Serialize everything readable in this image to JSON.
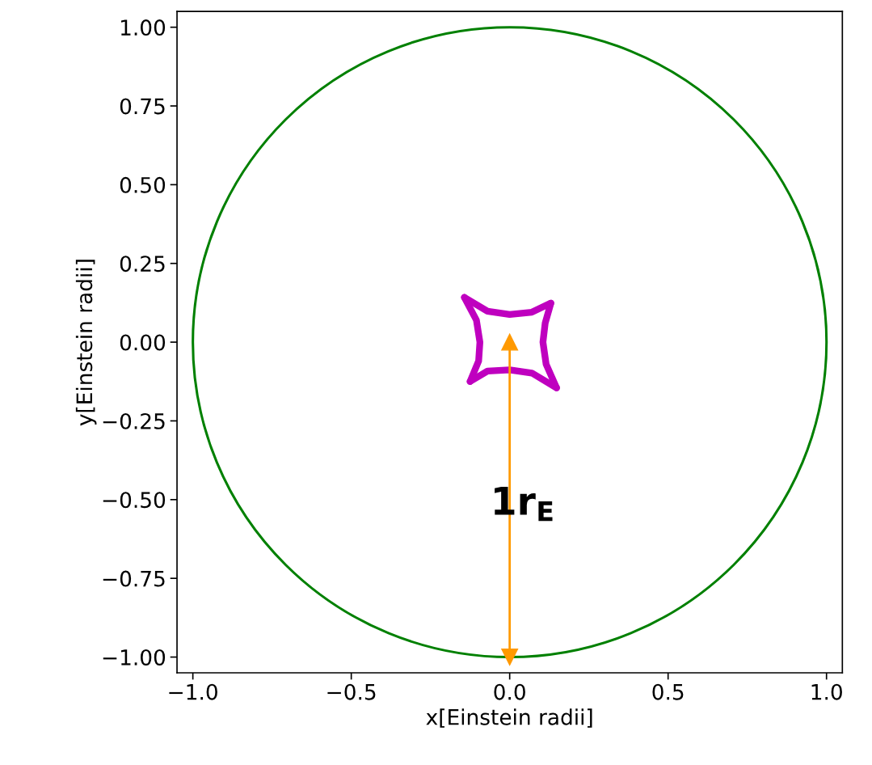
{
  "chart_data": {
    "type": "line",
    "xlabel": "x[Einstein radii]",
    "ylabel": "y[Einstein radii]",
    "xlim": [
      -1.05,
      1.05
    ],
    "ylim": [
      -1.05,
      1.05
    ],
    "xticks": [
      {
        "value": -1.0,
        "label": "−1.0"
      },
      {
        "value": -0.5,
        "label": "−0.5"
      },
      {
        "value": 0.0,
        "label": "0.0"
      },
      {
        "value": 0.5,
        "label": "0.5"
      },
      {
        "value": 1.0,
        "label": "1.0"
      }
    ],
    "yticks": [
      {
        "value": -1.0,
        "label": "−1.00"
      },
      {
        "value": -0.75,
        "label": "−0.75"
      },
      {
        "value": -0.5,
        "label": "−0.50"
      },
      {
        "value": -0.25,
        "label": "−0.25"
      },
      {
        "value": 0.0,
        "label": "0.00"
      },
      {
        "value": 0.25,
        "label": "0.25"
      },
      {
        "value": 0.5,
        "label": "0.50"
      },
      {
        "value": 0.75,
        "label": "0.75"
      },
      {
        "value": 1.0,
        "label": "1.00"
      }
    ],
    "grid": false,
    "legend": false,
    "series": [
      {
        "color": "#bf00bf",
        "x": [
          -0.143,
          -0.07,
          0,
          0.07,
          0.13
        ],
        "values": [
          0.142,
          0.098,
          0.088,
          0.095,
          0.124
        ]
      },
      {
        "color": "#bf00bf",
        "x": [
          -0.125,
          -0.07,
          0,
          0.07,
          0.148
        ],
        "values": [
          -0.125,
          -0.092,
          -0.088,
          -0.098,
          -0.145
        ]
      },
      {
        "color": "#bf00bf",
        "x": [
          -0.125,
          -0.098,
          -0.094,
          -0.105,
          -0.143
        ],
        "values": [
          -0.125,
          -0.06,
          0,
          0.07,
          0.142
        ]
      },
      {
        "color": "#bf00bf",
        "x": [
          0.13,
          0.112,
          0.105,
          0.115,
          0.148
        ],
        "values": [
          0.124,
          0.06,
          0,
          -0.07,
          -0.145
        ]
      },
      {
        "color": "#ff9900",
        "marker": "triangle",
        "x": [
          0,
          0
        ],
        "values": [
          -1,
          0
        ]
      }
    ],
    "annotations": [
      "1r$_{E}$"
    ]
  }
}
